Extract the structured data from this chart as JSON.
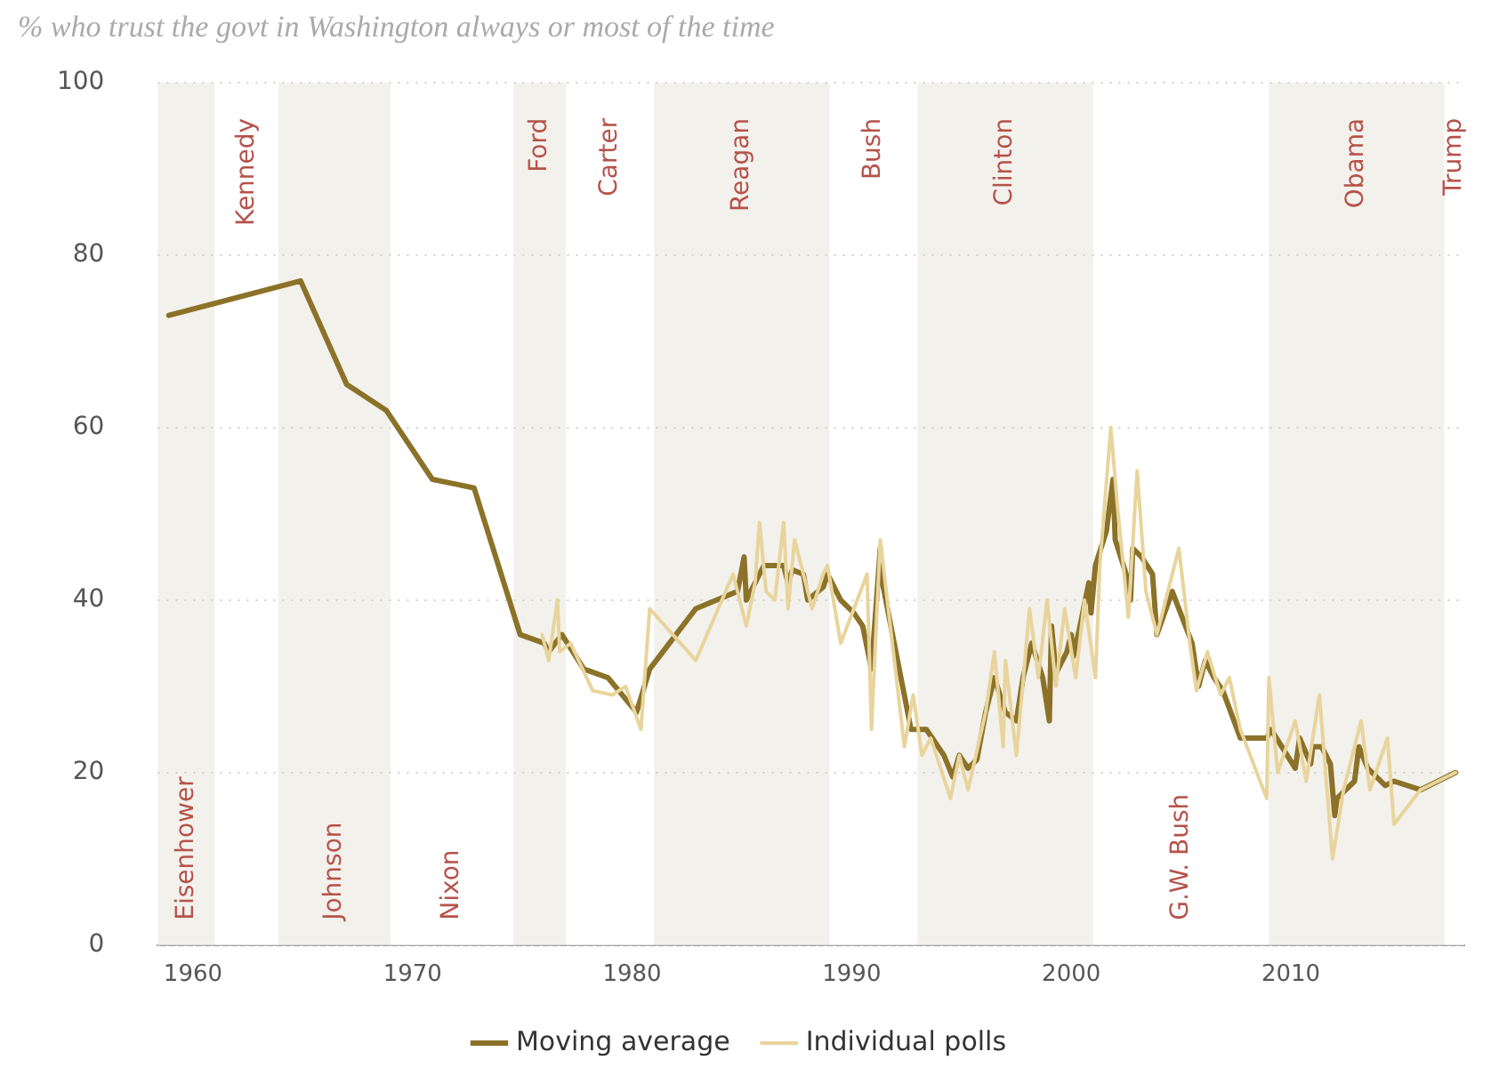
{
  "chart_data": {
    "type": "line",
    "title": "% who trust the govt in Washington always or most of the time",
    "xlim": [
      1958.4,
      2017.9
    ],
    "xticks": [
      1960,
      1970,
      1980,
      1990,
      2000,
      2010
    ],
    "ylim": [
      0,
      100
    ],
    "yticks": [
      0,
      20,
      40,
      60,
      80,
      100
    ],
    "grid": "y",
    "legend": "bottom",
    "marker": "none",
    "line_style": "solid",
    "bands": [
      {
        "axis": "x",
        "from": 1958.4,
        "to": 1961,
        "label": "Eisenhower",
        "color": "#f3f1ec"
      },
      {
        "axis": "x",
        "from": 1961,
        "to": 1963.9,
        "label": "Kennedy",
        "color": "#ffffff"
      },
      {
        "axis": "x",
        "from": 1963.9,
        "to": 1969,
        "label": "Johnson",
        "color": "#f3f1ec"
      },
      {
        "axis": "x",
        "from": 1969,
        "to": 1974.6,
        "label": "Nixon",
        "color": "#ffffff"
      },
      {
        "axis": "x",
        "from": 1974.6,
        "to": 1977,
        "label": "Ford",
        "color": "#f3f1ec"
      },
      {
        "axis": "x",
        "from": 1977,
        "to": 1981,
        "label": "Carter",
        "color": "#ffffff"
      },
      {
        "axis": "x",
        "from": 1981,
        "to": 1989,
        "label": "Reagan",
        "color": "#f3f1ec"
      },
      {
        "axis": "x",
        "from": 1989,
        "to": 1993,
        "label": "Bush",
        "color": "#ffffff"
      },
      {
        "axis": "x",
        "from": 1993,
        "to": 2001,
        "label": "Clinton",
        "color": "#f3f1ec"
      },
      {
        "axis": "x",
        "from": 2001,
        "to": 2009,
        "label": "G.W. Bush",
        "color": "#ffffff"
      },
      {
        "axis": "x",
        "from": 2009,
        "to": 2017,
        "label": "Obama",
        "color": "#f3f1ec"
      },
      {
        "axis": "x",
        "from": 2017,
        "to": 2017.9,
        "label": "Trump",
        "color": "#ffffff"
      }
    ],
    "series": [
      {
        "name": "Individual polls",
        "color": "#e8d49c",
        "x": [
          1975.9,
          1976.2,
          1976.6,
          1976.7,
          1977.2,
          1978.2,
          1979.1,
          1979.7,
          1980.4,
          1980.8,
          1982.9,
          1984.6,
          1985.2,
          1985.6,
          1985.8,
          1986.1,
          1986.5,
          1986.9,
          1987.1,
          1987.4,
          1988.2,
          1988.7,
          1988.9,
          1989.5,
          1990.7,
          1990.9,
          1991.3,
          1992.4,
          1992.8,
          1993.2,
          1993.6,
          1994.5,
          1994.9,
          1995.3,
          1996.1,
          1996.5,
          1996.9,
          1997.0,
          1997.5,
          1998.1,
          1998.5,
          1998.9,
          1999.3,
          1999.7,
          2000.2,
          2000.6,
          2001.1,
          2001.3,
          2001.8,
          2002.1,
          2002.6,
          2003.0,
          2003.4,
          2003.9,
          2004.9,
          2005.4,
          2005.7,
          2006.2,
          2006.8,
          2007.2,
          2007.7,
          2008.9,
          2009.0,
          2009.4,
          2010.2,
          2010.7,
          2011.3,
          2011.9,
          2012.4,
          2013.2,
          2013.6,
          2014.4,
          2014.7,
          2015.9,
          2017.5
        ],
        "values": [
          36,
          33,
          40,
          34,
          35,
          29.5,
          29,
          30,
          25,
          39,
          33,
          43,
          37,
          42,
          49,
          41,
          40,
          49,
          39,
          47,
          39,
          43,
          44,
          35,
          43,
          25,
          47,
          23,
          29,
          22,
          24,
          17,
          22,
          18,
          27,
          34,
          23,
          33,
          22,
          39,
          31,
          40,
          30,
          39,
          31,
          40,
          31,
          44,
          60,
          51,
          38,
          55,
          41,
          36,
          46,
          35,
          29.5,
          34,
          29,
          31,
          25,
          17,
          31,
          20,
          26,
          19,
          29,
          10,
          18,
          26,
          18,
          24,
          14,
          18,
          20
        ]
      },
      {
        "name": "Moving average",
        "color": "#8b7228",
        "x": [
          1958.9,
          1964.9,
          1967.0,
          1968.8,
          1970.9,
          1972.8,
          1974.9,
          1976.0,
          1976.2,
          1976.8,
          1977.8,
          1978.9,
          1980.2,
          1980.8,
          1982.9,
          1984.8,
          1985.1,
          1985.2,
          1986.0,
          1986.9,
          1987.1,
          1987.3,
          1987.8,
          1988.0,
          1988.7,
          1988.9,
          1989.5,
          1990.1,
          1990.5,
          1990.9,
          1991.3,
          1991.4,
          1992.7,
          1993.4,
          1994.2,
          1994.6,
          1994.9,
          1995.3,
          1995.7,
          1996.1,
          1996.5,
          1997.0,
          1997.5,
          1997.8,
          1998.2,
          1998.7,
          1999.0,
          1999.1,
          1999.3,
          1999.8,
          2000.0,
          2000.1,
          2000.4,
          2000.8,
          2000.9,
          2001.1,
          2001.6,
          2001.9,
          2002.0,
          2002.5,
          2002.7,
          2002.8,
          2003.2,
          2003.7,
          2003.9,
          2004.6,
          2005.5,
          2005.8,
          2006.1,
          2006.5,
          2006.9,
          2007.7,
          2008.9,
          2009.1,
          2010.2,
          2010.4,
          2010.9,
          2011.0,
          2011.4,
          2011.8,
          2012.0,
          2012.1,
          2012.9,
          2013.1,
          2013.5,
          2013.9,
          2014.3,
          2014.7,
          2015.9,
          2017.5
        ],
        "values": [
          73,
          77,
          65,
          62,
          54,
          53,
          36,
          35,
          34,
          36,
          32,
          31,
          27,
          32,
          39,
          41,
          45,
          40,
          44,
          44,
          42,
          43.5,
          43,
          40,
          41.5,
          43,
          40,
          38.5,
          37,
          32,
          46,
          42,
          25,
          25,
          22,
          19.5,
          22,
          20.5,
          21.5,
          27,
          31,
          27,
          26,
          31,
          35,
          31,
          26,
          37,
          31.5,
          34,
          36,
          33.5,
          37,
          42,
          38.5,
          44,
          48,
          54,
          47,
          43,
          40,
          46,
          45,
          43,
          36,
          41,
          35,
          30,
          33,
          31,
          29.5,
          24,
          24,
          25,
          20.5,
          24,
          21,
          23,
          23,
          21,
          15,
          17,
          19,
          23,
          20.5,
          19.5,
          18.5,
          19,
          18,
          20
        ]
      }
    ]
  }
}
